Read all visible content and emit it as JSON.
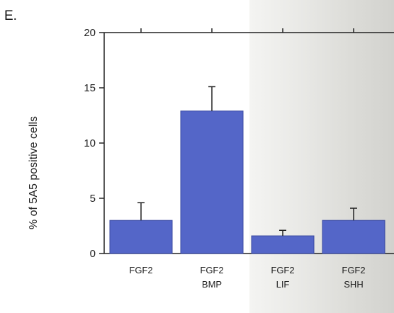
{
  "panel_label": "E.",
  "colors": {
    "bar": "#5466c8",
    "bar_stroke": "#3a4aa0",
    "axis": "#222222"
  },
  "chart_data": {
    "type": "bar",
    "title": "",
    "xlabel": "",
    "ylabel": "% of 5A5 positive cells",
    "ylim": [
      0,
      20
    ],
    "yticks": [
      0,
      5,
      10,
      15,
      20
    ],
    "yticklabels": [
      "0",
      "5",
      "10",
      "15",
      "20"
    ],
    "categories": [
      [
        "FGF2"
      ],
      [
        "FGF2",
        "BMP"
      ],
      [
        "FGF2",
        "LIF"
      ],
      [
        "FGF2",
        "SHH"
      ]
    ],
    "values": [
      3.0,
      12.9,
      1.6,
      3.0
    ],
    "errors": [
      1.6,
      2.2,
      0.5,
      1.1
    ]
  }
}
